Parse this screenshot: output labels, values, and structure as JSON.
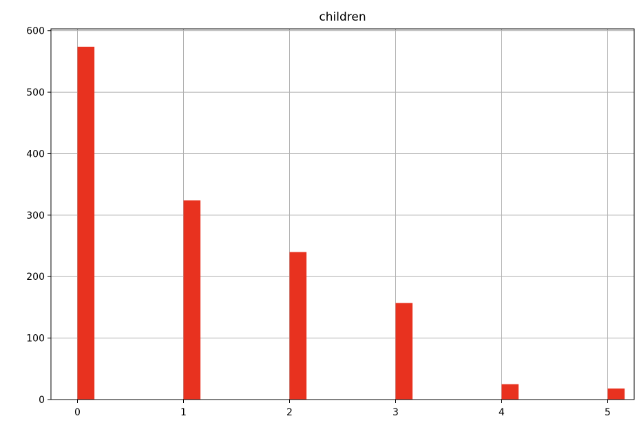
{
  "chart_data": {
    "type": "bar",
    "title": "children",
    "xlabel": "",
    "ylabel": "",
    "x": [
      0,
      1,
      2,
      3,
      4,
      5
    ],
    "values": [
      574,
      324,
      240,
      157,
      25,
      18
    ],
    "xlim": [
      -0.25,
      5.25
    ],
    "ylim": [
      0,
      603
    ],
    "x_ticks": [
      0,
      1,
      2,
      3,
      4,
      5
    ],
    "y_ticks": [
      0,
      100,
      200,
      300,
      400,
      500,
      600
    ],
    "bar_width": 0.16,
    "grid": true,
    "legend": "none",
    "colors": {
      "bar": "#e8321f",
      "grid": "#b0b0b0",
      "axis": "#000000"
    }
  }
}
